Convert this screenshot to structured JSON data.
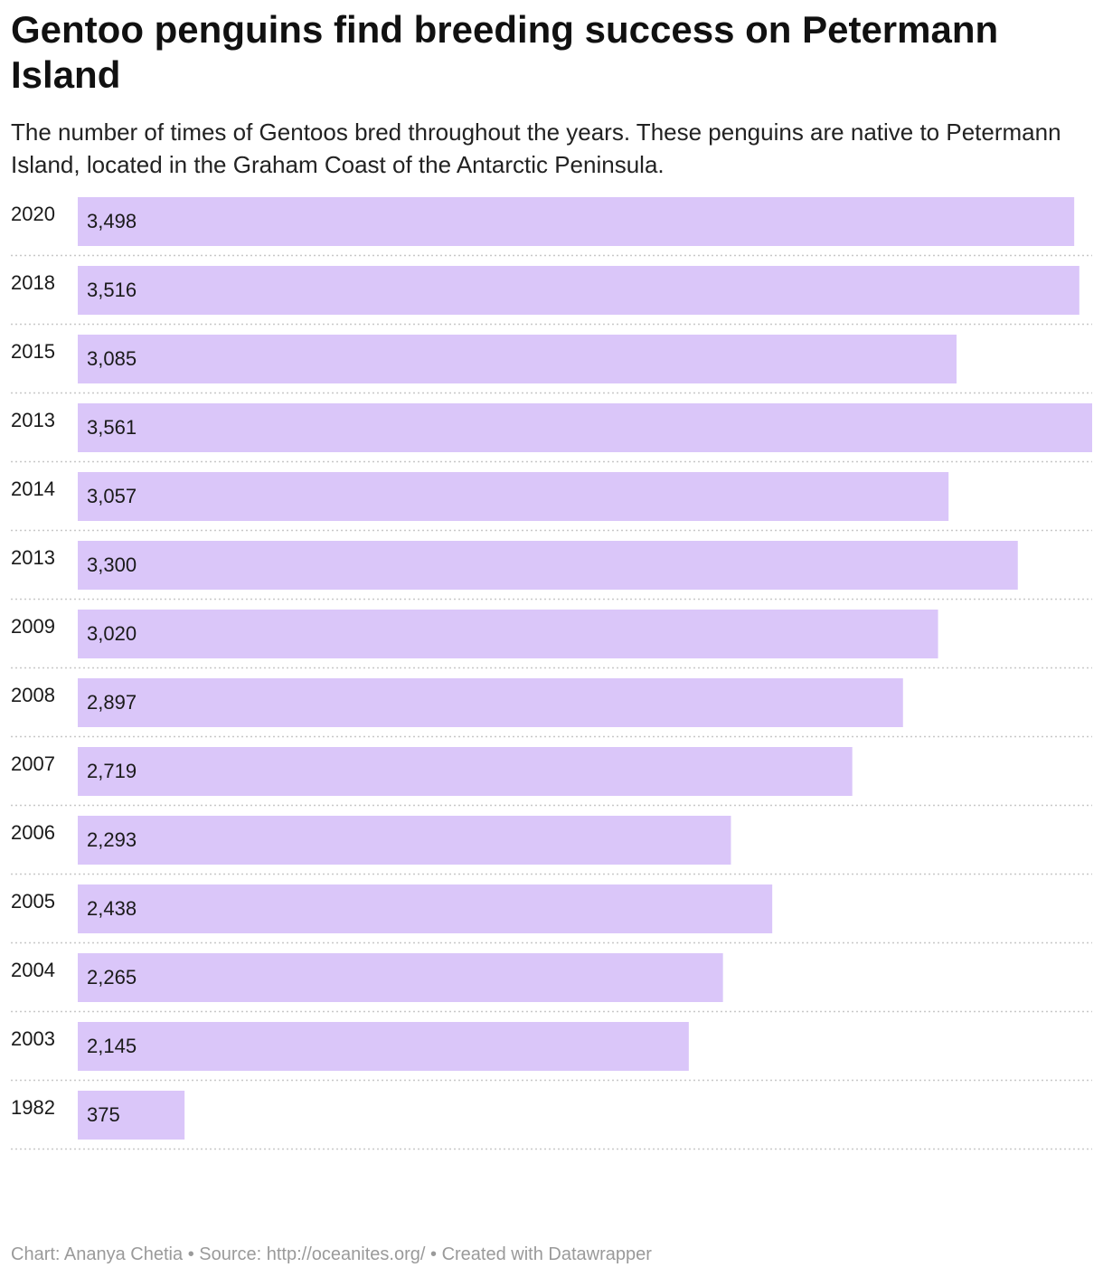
{
  "title": "Gentoo penguins find breeding success on Petermann Island",
  "subtitle": "The number of times of Gentoos bred throughout the years. These penguins are native to Petermann Island, located in the Graham Coast of the Antarctic Peninsula.",
  "footer": {
    "chart_by": "Chart: Ananya Chetia",
    "source": "Source: http://oceanites.org/",
    "created_with": "Created with Datawrapper",
    "separator": "•"
  },
  "colors": {
    "bar": "#dac6f9",
    "label": "#1a1a1a",
    "divider": "#c8c8c8"
  },
  "chart_data": {
    "type": "bar",
    "orientation": "horizontal",
    "title": "Gentoo penguins find breeding success on Petermann Island",
    "xlabel": "",
    "ylabel": "",
    "xlim": [
      0,
      3561
    ],
    "categories": [
      "2020",
      "2018",
      "2015",
      "2013",
      "2014",
      "2013",
      "2009",
      "2008",
      "2007",
      "2006",
      "2005",
      "2004",
      "2003",
      "1982"
    ],
    "values": [
      3498,
      3516,
      3085,
      3561,
      3057,
      3300,
      3020,
      2897,
      2719,
      2293,
      2438,
      2265,
      2145,
      375
    ],
    "value_labels": [
      "3,498",
      "3,516",
      "3,085",
      "3,561",
      "3,057",
      "3,300",
      "3,020",
      "2,897",
      "2,719",
      "2,293",
      "2,438",
      "2,265",
      "2,145",
      "375"
    ]
  }
}
